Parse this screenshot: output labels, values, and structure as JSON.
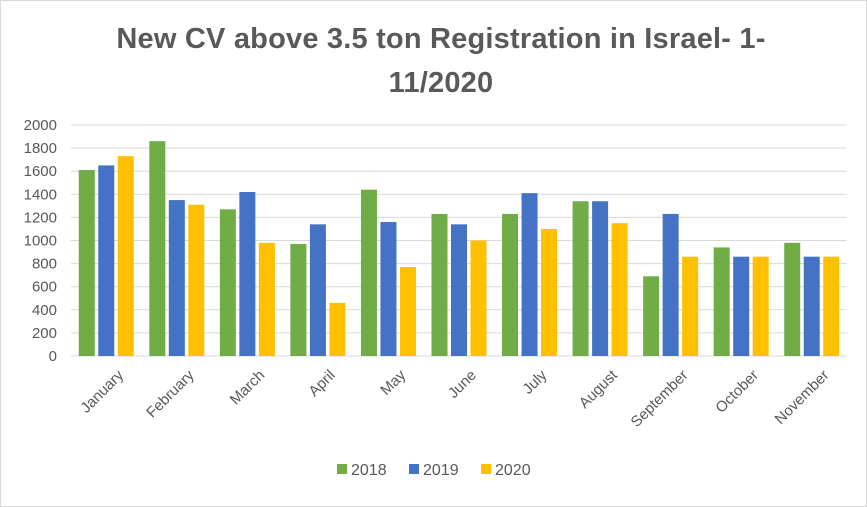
{
  "chart_data": {
    "type": "bar",
    "title": "New CV above 3.5 ton Registration in Israel- 1-11/2020",
    "xlabel": "",
    "ylabel": "",
    "ylim": [
      0,
      2000
    ],
    "yticks": [
      0,
      200,
      400,
      600,
      800,
      1000,
      1200,
      1400,
      1600,
      1800,
      2000
    ],
    "grid": true,
    "legend_position": "bottom",
    "categories": [
      "January",
      "February",
      "March",
      "April",
      "May",
      "June",
      "July",
      "August",
      "September",
      "October",
      "November"
    ],
    "series": [
      {
        "name": "2018",
        "color": "#70ad47",
        "values": [
          1610,
          1860,
          1270,
          970,
          1440,
          1230,
          1230,
          1340,
          690,
          940,
          980
        ]
      },
      {
        "name": "2019",
        "color": "#4472c4",
        "values": [
          1650,
          1350,
          1420,
          1140,
          1160,
          1140,
          1410,
          1340,
          1230,
          860,
          860
        ]
      },
      {
        "name": "2020",
        "color": "#ffc000",
        "values": [
          1730,
          1310,
          980,
          460,
          770,
          1000,
          1100,
          1150,
          860,
          860,
          860
        ]
      }
    ]
  }
}
